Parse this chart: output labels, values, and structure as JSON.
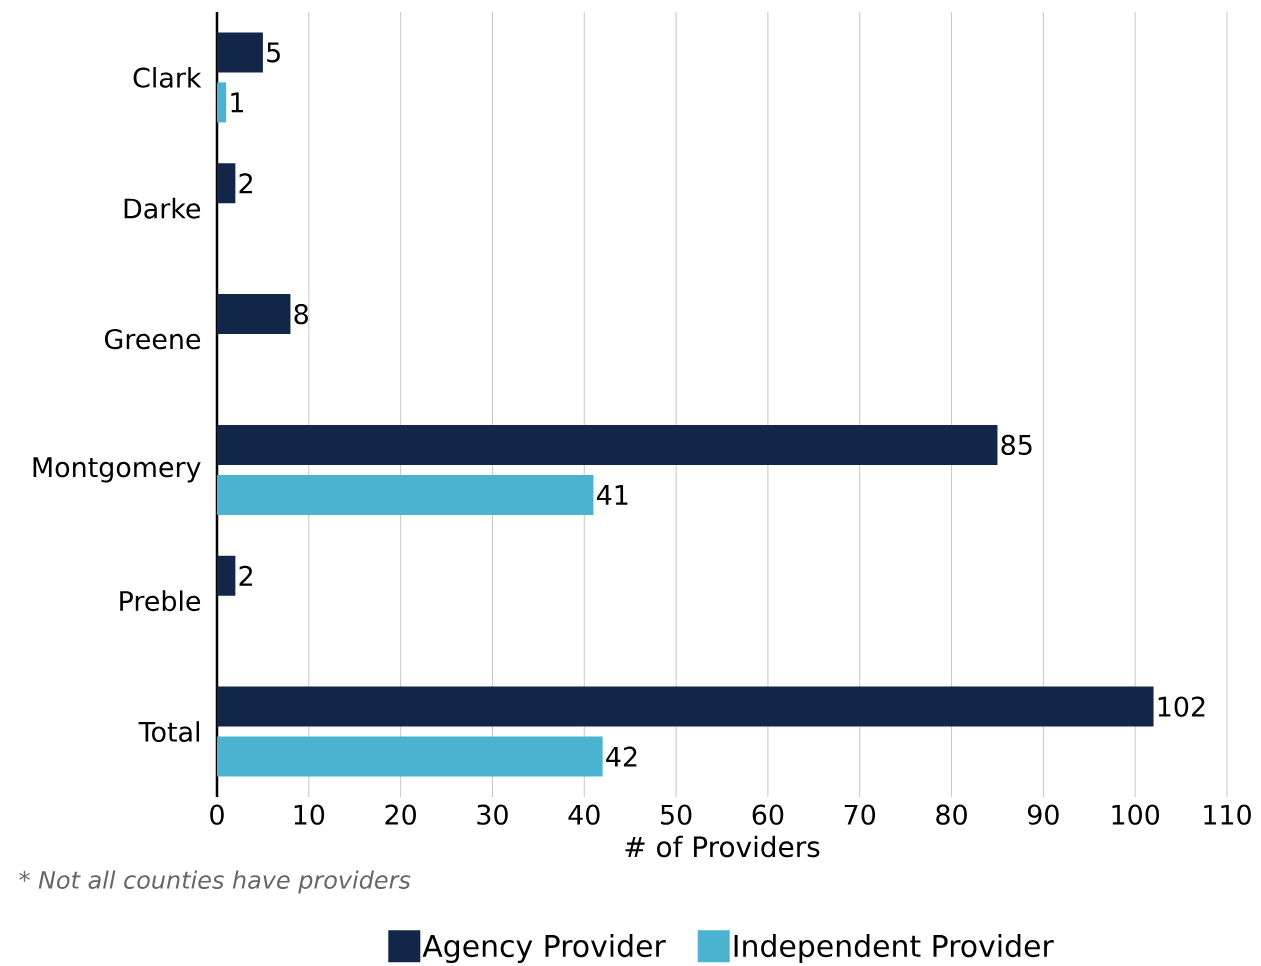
{
  "chart_data": {
    "type": "bar",
    "orientation": "horizontal",
    "categories": [
      "Clark",
      "Darke",
      "Greene",
      "Montgomery",
      "Preble",
      "Total"
    ],
    "series": [
      {
        "name": "Agency Provider",
        "color": "#12264a",
        "values": [
          5,
          2,
          8,
          85,
          2,
          102
        ]
      },
      {
        "name": "Independent Provider",
        "color": "#4bb3d0",
        "values": [
          1,
          null,
          null,
          41,
          null,
          42
        ]
      }
    ],
    "xlabel": "# of Providers",
    "xlim": [
      0,
      110
    ],
    "xticks": [
      0,
      10,
      20,
      30,
      40,
      50,
      60,
      70,
      80,
      90,
      100,
      110
    ],
    "grid": "x",
    "data_labels": true,
    "legend": "bottom",
    "annotations": [
      "* Not all counties have providers"
    ]
  }
}
